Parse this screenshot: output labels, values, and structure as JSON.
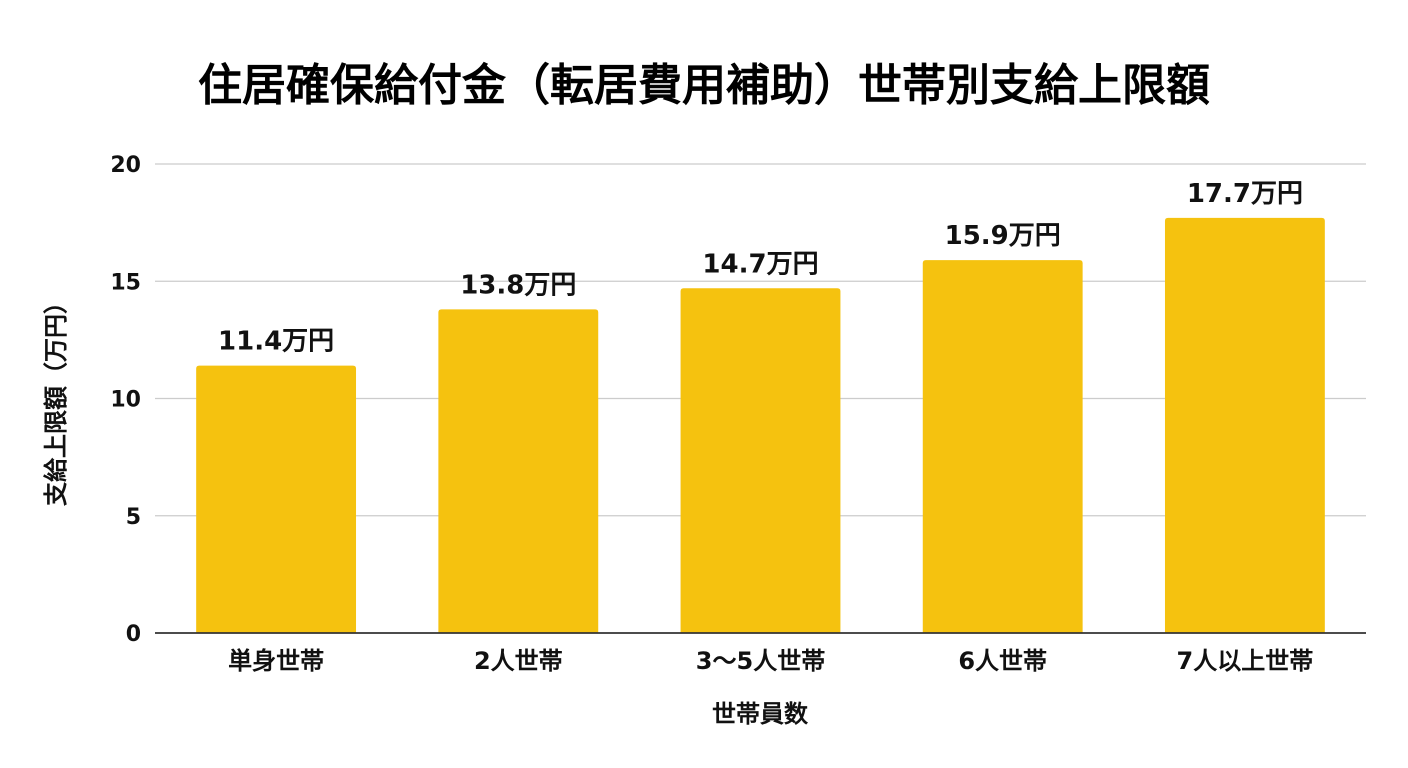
{
  "chart_data": {
    "type": "bar",
    "title": "住居確保給付金（転居費用補助）世帯別支給上限額",
    "xlabel": "世帯員数",
    "ylabel": "支給上限額（万円）",
    "categories": [
      "単身世帯",
      "2人世帯",
      "3〜5人世帯",
      "6人世帯",
      "7人以上世帯"
    ],
    "values": [
      11.4,
      13.8,
      14.7,
      15.9,
      17.7
    ],
    "data_labels": [
      "11.4万円",
      "13.8万円",
      "14.7万円",
      "15.9万円",
      "17.7万円"
    ],
    "yticks": [
      0,
      5,
      10,
      15,
      20
    ],
    "ylim": [
      0,
      20
    ],
    "grid": true,
    "legend": "none",
    "bar_color": "#F5C20F"
  }
}
